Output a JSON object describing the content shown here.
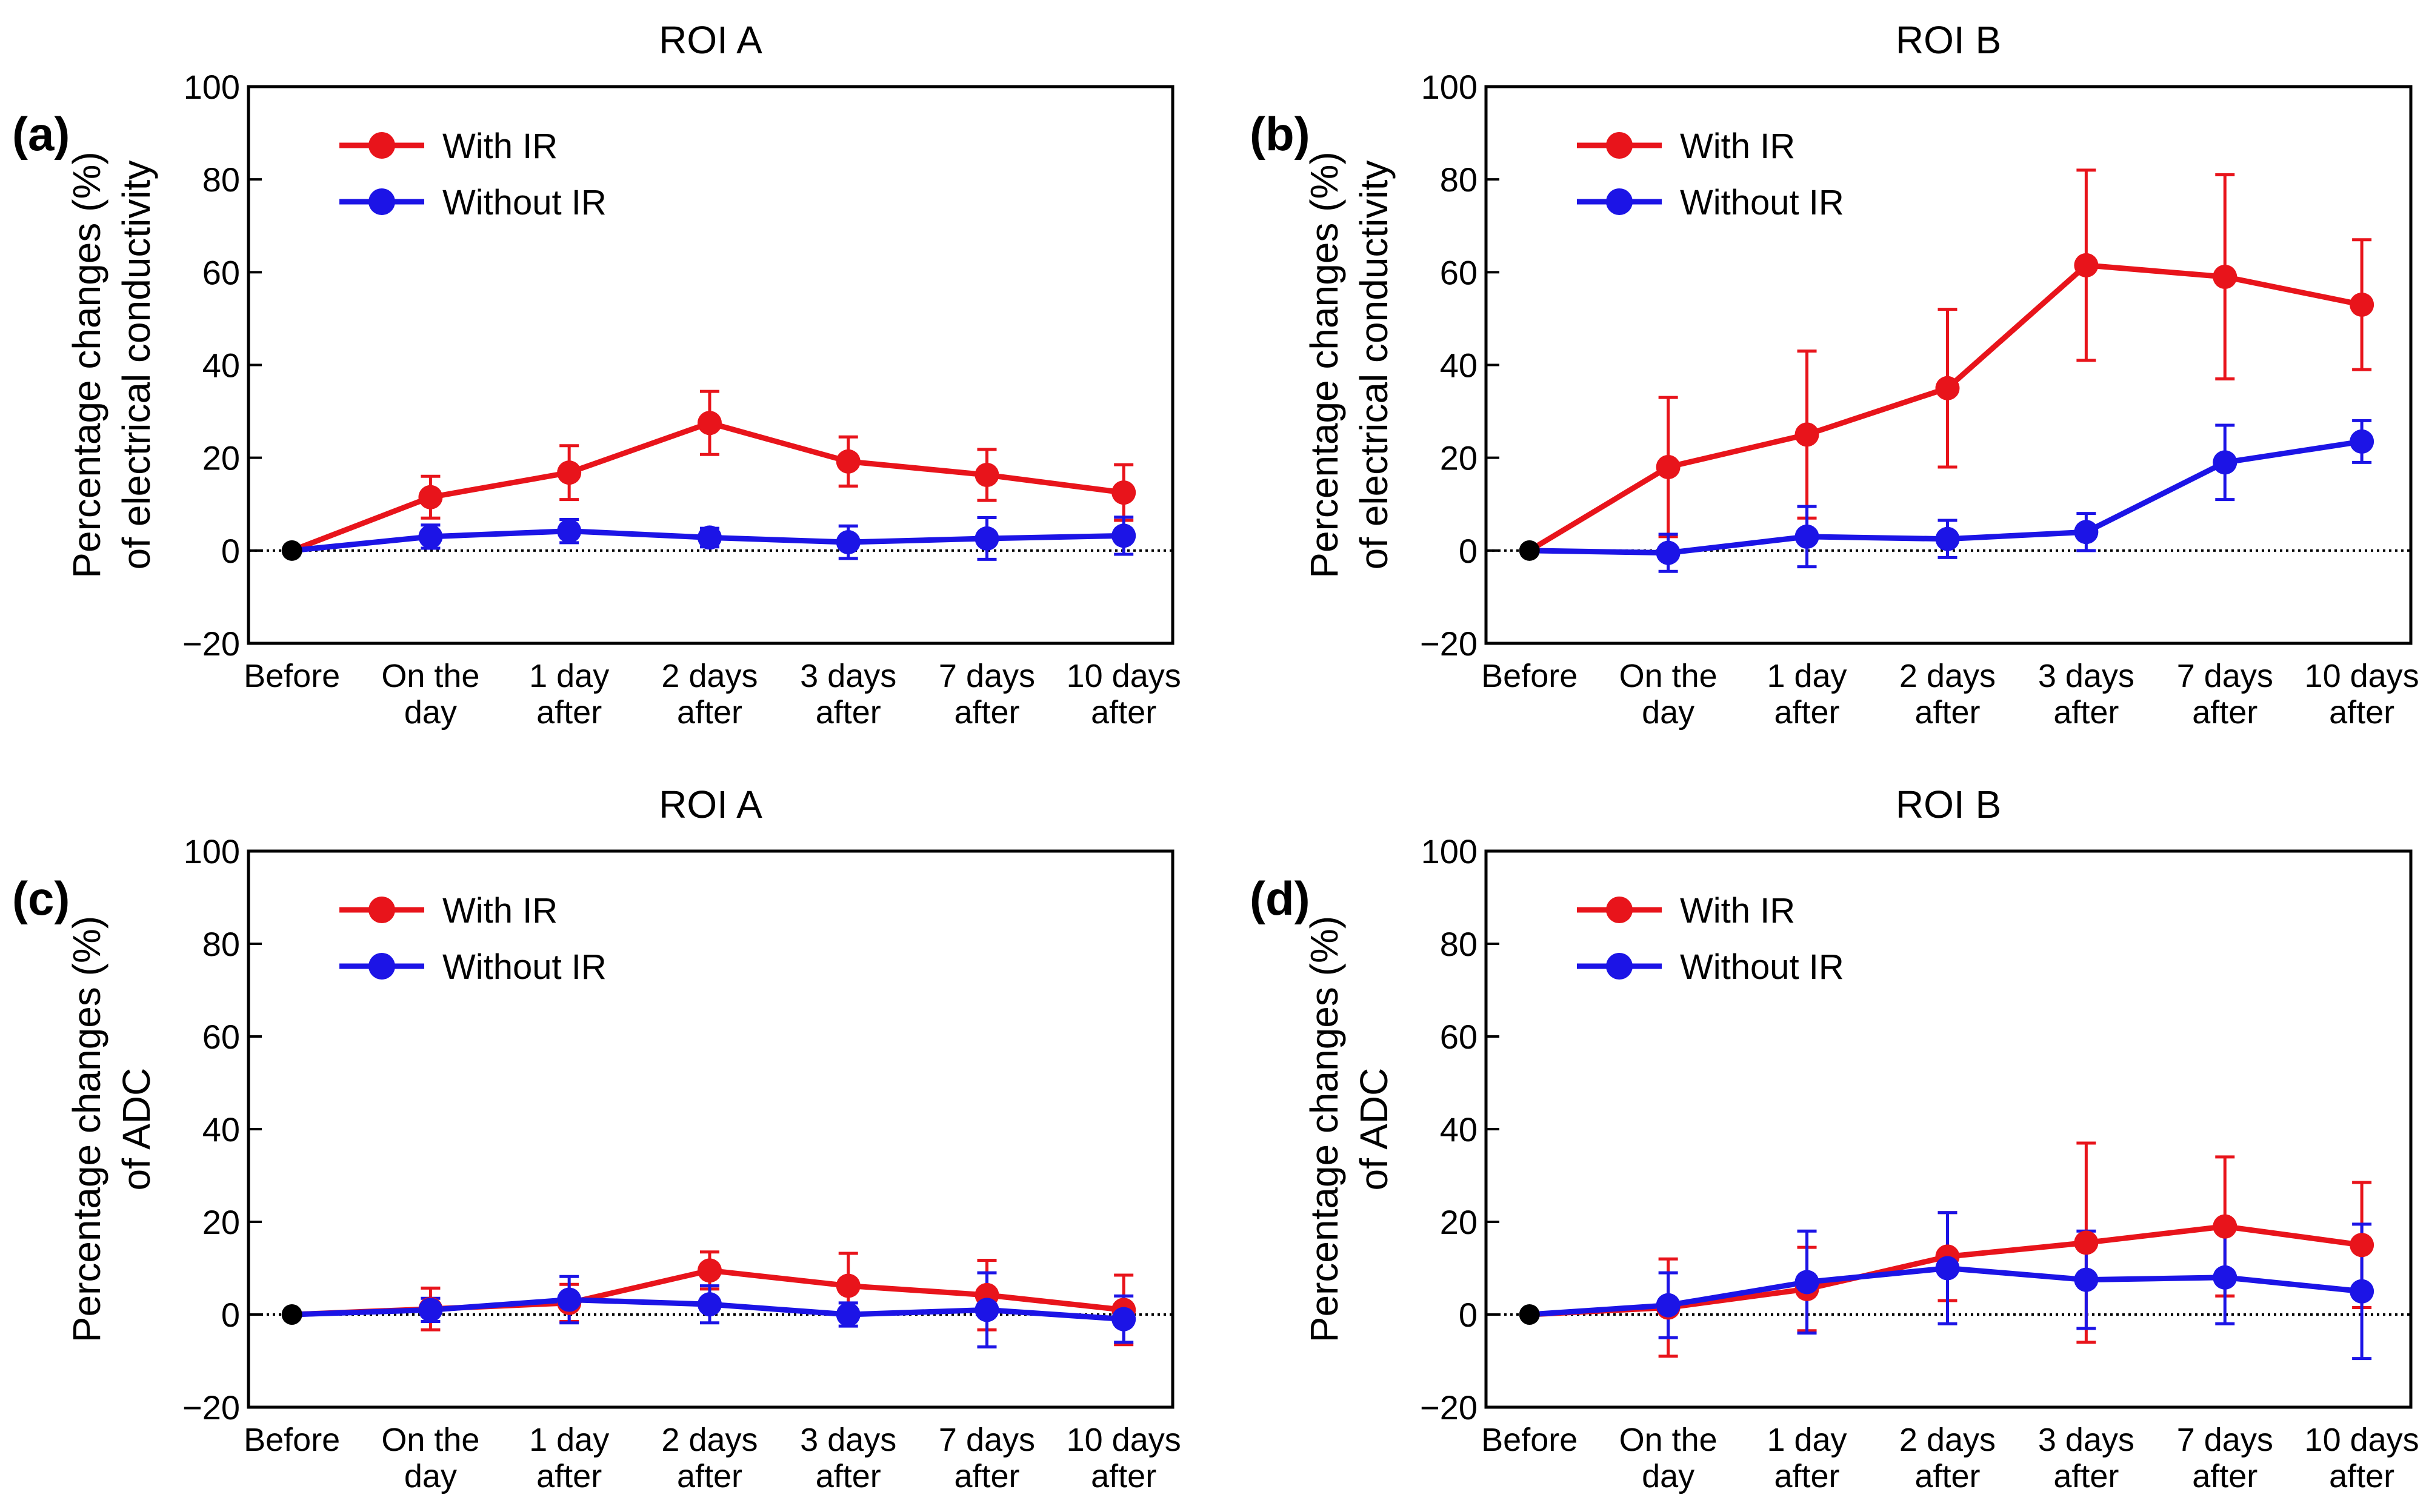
{
  "figure": {
    "colors": {
      "with_ir": "#e8141b",
      "without_ir": "#1c14e6",
      "baseline_point": "#000000",
      "axis": "#000000"
    }
  },
  "chart_data": [
    {
      "panel_label": "(a)",
      "type": "line",
      "title": "ROI A",
      "ylabel_lines": [
        "Percentage changes (%)",
        "of electrical conductivity"
      ],
      "categories": [
        [
          "Before"
        ],
        [
          "On the",
          "day"
        ],
        [
          "1 day",
          "after"
        ],
        [
          "2 days",
          "after"
        ],
        [
          "3 days",
          "after"
        ],
        [
          "7 days",
          "after"
        ],
        [
          "10 days",
          "after"
        ]
      ],
      "ylim": [
        -20,
        100
      ],
      "yticks": [
        -20,
        0,
        20,
        40,
        60,
        80,
        100
      ],
      "ytick_labels": [
        "−20",
        "0",
        "20",
        "40",
        "60",
        "80",
        "100"
      ],
      "reference_line": 0,
      "legend": {
        "position": "top-left",
        "entries": [
          "With IR",
          "Without IR"
        ]
      },
      "series": [
        {
          "name": "With IR",
          "color": "#e8141b",
          "values": [
            0,
            11.5,
            16.8,
            27.5,
            19.2,
            16.3,
            12.5
          ],
          "err": [
            0,
            4.5,
            5.8,
            6.8,
            5.3,
            5.5,
            6.0
          ]
        },
        {
          "name": "Without IR",
          "color": "#1c14e6",
          "values": [
            0,
            3.0,
            4.2,
            2.8,
            1.8,
            2.6,
            3.2
          ],
          "err": [
            0,
            2.5,
            2.5,
            2.0,
            3.5,
            4.5,
            4.0
          ]
        }
      ]
    },
    {
      "panel_label": "(b)",
      "type": "line",
      "title": "ROI B",
      "ylabel_lines": [
        "Percentage changes (%)",
        "of electrical conductivity"
      ],
      "categories": [
        [
          "Before"
        ],
        [
          "On the",
          "day"
        ],
        [
          "1 day",
          "after"
        ],
        [
          "2 days",
          "after"
        ],
        [
          "3 days",
          "after"
        ],
        [
          "7 days",
          "after"
        ],
        [
          "10 days",
          "after"
        ]
      ],
      "ylim": [
        -20,
        100
      ],
      "yticks": [
        -20,
        0,
        20,
        40,
        60,
        80,
        100
      ],
      "ytick_labels": [
        "−20",
        "0",
        "20",
        "40",
        "60",
        "80",
        "100"
      ],
      "reference_line": 0,
      "legend": {
        "position": "top-left",
        "entries": [
          "With IR",
          "Without IR"
        ]
      },
      "series": [
        {
          "name": "With IR",
          "color": "#e8141b",
          "values": [
            0,
            18.0,
            25.0,
            35.0,
            61.5,
            59.0,
            53.0
          ],
          "err": [
            0,
            15.0,
            18.0,
            17.0,
            20.5,
            22.0,
            14.0
          ]
        },
        {
          "name": "Without IR",
          "color": "#1c14e6",
          "values": [
            0,
            -0.5,
            3.0,
            2.5,
            4.0,
            19.0,
            23.5
          ],
          "err": [
            0,
            4.0,
            6.5,
            4.0,
            4.0,
            8.0,
            4.5
          ]
        }
      ]
    },
    {
      "panel_label": "(c)",
      "type": "line",
      "title": "ROI A",
      "ylabel_lines": [
        "Percentage changes (%)",
        "of ADC"
      ],
      "categories": [
        [
          "Before"
        ],
        [
          "On the",
          "day"
        ],
        [
          "1 day",
          "after"
        ],
        [
          "2 days",
          "after"
        ],
        [
          "3 days",
          "after"
        ],
        [
          "7 days",
          "after"
        ],
        [
          "10 days",
          "after"
        ]
      ],
      "ylim": [
        -20,
        100
      ],
      "yticks": [
        -20,
        0,
        20,
        40,
        60,
        80,
        100
      ],
      "ytick_labels": [
        "−20",
        "0",
        "20",
        "40",
        "60",
        "80",
        "100"
      ],
      "reference_line": 0,
      "legend": {
        "position": "top-left",
        "entries": [
          "With IR",
          "Without IR"
        ]
      },
      "series": [
        {
          "name": "With IR",
          "color": "#e8141b",
          "values": [
            0,
            1.2,
            2.5,
            9.5,
            6.2,
            4.2,
            1.0
          ],
          "err": [
            0,
            4.5,
            4.0,
            4.0,
            7.0,
            7.5,
            7.5
          ]
        },
        {
          "name": "Without IR",
          "color": "#1c14e6",
          "values": [
            0,
            1.0,
            3.2,
            2.2,
            0.0,
            1.0,
            -1.0
          ],
          "err": [
            0,
            2.5,
            5.0,
            4.0,
            2.5,
            8.0,
            5.0
          ]
        }
      ]
    },
    {
      "panel_label": "(d)",
      "type": "line",
      "title": "ROI B",
      "ylabel_lines": [
        "Percentage changes (%)",
        "of ADC"
      ],
      "categories": [
        [
          "Before"
        ],
        [
          "On the",
          "day"
        ],
        [
          "1 day",
          "after"
        ],
        [
          "2 days",
          "after"
        ],
        [
          "3 days",
          "after"
        ],
        [
          "7 days",
          "after"
        ],
        [
          "10 days",
          "after"
        ]
      ],
      "ylim": [
        -20,
        100
      ],
      "yticks": [
        -20,
        0,
        20,
        40,
        60,
        80,
        100
      ],
      "ytick_labels": [
        "−20",
        "0",
        "20",
        "40",
        "60",
        "80",
        "100"
      ],
      "reference_line": 0,
      "legend": {
        "position": "top-left",
        "entries": [
          "With IR",
          "Without IR"
        ]
      },
      "series": [
        {
          "name": "With IR",
          "color": "#e8141b",
          "values": [
            0,
            1.5,
            5.5,
            12.5,
            15.5,
            19.0,
            15.0
          ],
          "err": [
            0,
            10.5,
            9.0,
            9.5,
            21.5,
            15.0,
            13.5
          ]
        },
        {
          "name": "Without IR",
          "color": "#1c14e6",
          "values": [
            0,
            2.0,
            7.0,
            10.0,
            7.5,
            8.0,
            5.0
          ],
          "err": [
            0,
            7.0,
            11.0,
            12.0,
            10.5,
            10.0,
            14.5
          ]
        }
      ]
    }
  ]
}
